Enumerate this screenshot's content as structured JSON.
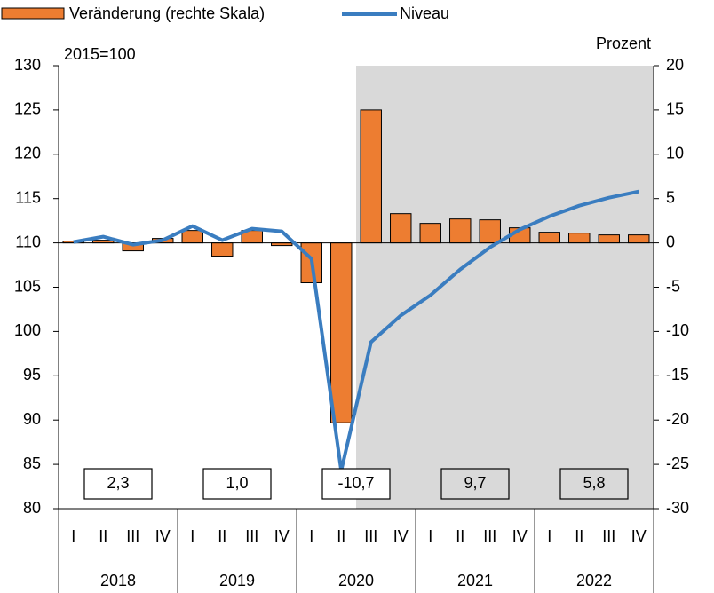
{
  "chart_data": {
    "type": "combo",
    "y_label": "2015=100",
    "y2_label": "Prozent",
    "categories": [
      "I",
      "II",
      "III",
      "IV",
      "I",
      "II",
      "III",
      "IV",
      "I",
      "II",
      "III",
      "IV",
      "I",
      "II",
      "III",
      "IV",
      "I",
      "II",
      "III",
      "IV"
    ],
    "years": [
      "2018",
      "2019",
      "2020",
      "2021",
      "2022"
    ],
    "annual_values": [
      2.3,
      1.0,
      -10.7,
      9.7,
      5.8
    ],
    "annual_value_labels": [
      "2,3",
      "1,0",
      "-10,7",
      "9,7",
      "5,8"
    ],
    "series": [
      {
        "name": "Veränderung (rechte Skala)",
        "type": "bar",
        "axis": "y2",
        "color": "#ed7d31",
        "values": [
          0.2,
          0.3,
          -0.9,
          0.5,
          1.4,
          -1.5,
          1.4,
          -0.3,
          -4.5,
          -20.3,
          15.0,
          3.3,
          2.2,
          2.7,
          2.6,
          1.7,
          1.2,
          1.1,
          0.9,
          0.9
        ]
      },
      {
        "name": "Niveau",
        "type": "line",
        "axis": "y",
        "color": "#3a7dc0",
        "values": [
          110.1,
          110.7,
          109.8,
          110.3,
          111.9,
          110.3,
          111.6,
          111.3,
          108.2,
          84.3,
          98.8,
          101.8,
          104.1,
          107.0,
          109.5,
          111.5,
          113.0,
          114.2,
          115.1,
          115.8
        ]
      }
    ],
    "ylim": [
      80,
      130
    ],
    "yticks": [
      80,
      85,
      90,
      95,
      100,
      105,
      110,
      115,
      120,
      125,
      130
    ],
    "y2lim": [
      -30,
      20
    ],
    "y2ticks": [
      -30,
      -25,
      -20,
      -15,
      -10,
      -5,
      0,
      5,
      10,
      15,
      20
    ]
  }
}
